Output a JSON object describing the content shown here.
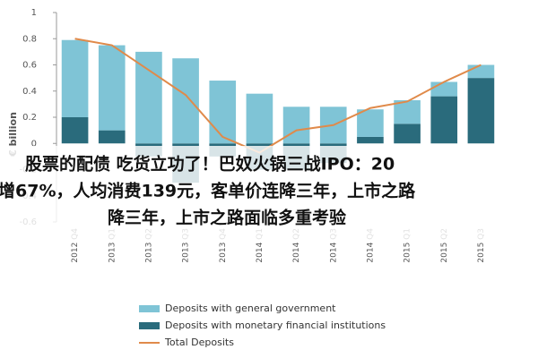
{
  "chart_data": {
    "type": "bar",
    "y_label": "€ billion",
    "categories": [
      "2012 Q4",
      "2013 Q1",
      "2013 Q2",
      "2013 Q3",
      "2013 Q4",
      "2014 Q1",
      "2014 Q2",
      "2014 Q3",
      "2014 Q4",
      "2015 Q1",
      "2015 Q2",
      "2015 Q3"
    ],
    "series": [
      {
        "name": "Deposits with general government",
        "color": "#7fc4d6",
        "values": [
          0.59,
          0.65,
          0.7,
          0.65,
          0.48,
          0.38,
          0.28,
          0.28,
          0.21,
          0.18,
          0.11,
          0.1
        ]
      },
      {
        "name": "Deposits with monetary financial institutions",
        "color": "#2a6b7c",
        "values": [
          0.2,
          0.1,
          -0.1,
          -0.3,
          -0.1,
          -0.2,
          -0.2,
          -0.15,
          0.05,
          0.15,
          0.36,
          0.5
        ]
      },
      {
        "name": "Total Deposits",
        "type": "line",
        "color": "#e08a4a",
        "values": [
          0.8,
          0.75,
          0.56,
          0.37,
          0.05,
          -0.07,
          0.1,
          0.14,
          0.27,
          0.32,
          0.47,
          0.6
        ]
      }
    ],
    "ylim": [
      -0.6,
      1
    ],
    "yticks": [
      -0.6,
      -0.4,
      -0.2,
      0,
      0.2,
      0.4,
      0.6,
      0.8,
      1
    ],
    "overlay_text": [
      "股票的配债 吃货立功了！巴奴火锅三战IPO：20",
      "增67%，人均消费139元，客单价连降三年，上市之路",
      "降三年，上市之路面临多重考验"
    ]
  }
}
